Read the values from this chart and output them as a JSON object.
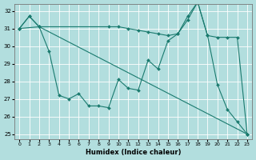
{
  "xlabel": "Humidex (Indice chaleur)",
  "xlim": [
    -0.5,
    23.5
  ],
  "ylim": [
    24.7,
    32.4
  ],
  "yticks": [
    25,
    26,
    27,
    28,
    29,
    30,
    31,
    32
  ],
  "xticks": [
    0,
    1,
    2,
    3,
    4,
    5,
    6,
    7,
    8,
    9,
    10,
    11,
    12,
    13,
    14,
    15,
    16,
    17,
    18,
    19,
    20,
    21,
    22,
    23
  ],
  "line_color": "#1a7a6e",
  "bg_color": "#b2dede",
  "grid_color": "#ffffff",
  "lines": [
    {
      "x": [
        0,
        1,
        2,
        3,
        4,
        5,
        6,
        7,
        8,
        9,
        10,
        11,
        12,
        13,
        14,
        15,
        16,
        17,
        18,
        19,
        20,
        21,
        22,
        23
      ],
      "y": [
        31.0,
        31.7,
        31.1,
        29.7,
        27.2,
        27.0,
        27.3,
        26.6,
        26.6,
        26.5,
        28.1,
        27.6,
        27.5,
        29.2,
        28.7,
        30.3,
        30.7,
        31.7,
        32.5,
        30.6,
        27.8,
        26.4,
        25.7,
        25.0
      ]
    },
    {
      "x": [
        0,
        2,
        23
      ],
      "y": [
        31.0,
        31.1,
        25.0
      ]
    },
    {
      "x": [
        0,
        1,
        2,
        9,
        10,
        11,
        12,
        13,
        14,
        15,
        16,
        17,
        18,
        19,
        20,
        21,
        22,
        23
      ],
      "y": [
        31.0,
        31.7,
        31.1,
        31.1,
        31.1,
        31.0,
        30.9,
        30.8,
        30.7,
        30.6,
        30.7,
        31.5,
        32.5,
        30.6,
        30.5,
        30.5,
        30.5,
        25.0
      ]
    }
  ]
}
